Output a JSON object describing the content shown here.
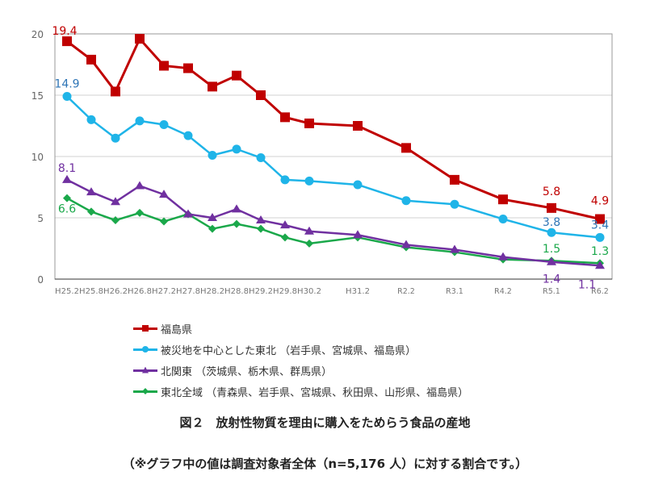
{
  "chart_data": {
    "type": "line",
    "categories": [
      "H25.2",
      "H25.8",
      "H26.2",
      "H26.8",
      "H27.2",
      "H27.8",
      "H28.2",
      "H28.8",
      "H29.2",
      "H29.8",
      "H30.2",
      "H31.2",
      "R2.2",
      "R3.1",
      "R4.2",
      "R5.1",
      "R6.2"
    ],
    "ylim": [
      0,
      20
    ],
    "yticks": [
      "0",
      "5",
      "10",
      "15",
      "20"
    ],
    "grid": true,
    "legend_position": "bottom",
    "series": [
      {
        "name": "福島県",
        "color": "#c00000",
        "label_color": "#c00000",
        "marker": "square",
        "values": [
          19.4,
          17.9,
          15.3,
          19.6,
          17.4,
          17.2,
          15.7,
          16.6,
          15.0,
          13.2,
          12.7,
          12.5,
          10.7,
          8.1,
          6.5,
          5.8,
          4.9
        ]
      },
      {
        "name": "被災地を中心とした東北 （岩手県、宮城県、福島県）",
        "color": "#1fb4e8",
        "label_color": "#2e75b6",
        "marker": "circle",
        "values": [
          14.9,
          13.0,
          11.5,
          12.9,
          12.6,
          11.7,
          10.1,
          10.6,
          9.9,
          8.1,
          8.0,
          7.7,
          6.4,
          6.1,
          4.9,
          3.8,
          3.4
        ]
      },
      {
        "name": "北関東 （茨城県、栃木県、群馬県）",
        "color": "#7030a0",
        "label_color": "#7030a0",
        "marker": "triangle",
        "values": [
          8.1,
          7.1,
          6.3,
          7.6,
          6.9,
          5.3,
          5.0,
          5.7,
          4.8,
          4.4,
          3.9,
          3.6,
          2.8,
          2.4,
          1.8,
          1.4,
          1.1
        ]
      },
      {
        "name": "東北全域 （青森県、岩手県、宮城県、秋田県、山形県、福島県）",
        "color": "#1aa84a",
        "label_color": "#1aa84a",
        "marker": "diamond",
        "values": [
          6.6,
          5.5,
          4.8,
          5.4,
          4.7,
          5.3,
          4.1,
          4.5,
          4.1,
          3.4,
          2.9,
          3.4,
          2.6,
          2.2,
          1.6,
          1.5,
          1.3
        ]
      }
    ],
    "data_labels": [
      {
        "series": 0,
        "point": 0,
        "text": "19.4"
      },
      {
        "series": 0,
        "point": 15,
        "text": "5.8"
      },
      {
        "series": 0,
        "point": 16,
        "text": "4.9"
      },
      {
        "series": 1,
        "point": 0,
        "text": "14.9"
      },
      {
        "series": 1,
        "point": 15,
        "text": "3.8"
      },
      {
        "series": 1,
        "point": 16,
        "text": "3.4"
      },
      {
        "series": 2,
        "point": 0,
        "text": "8.1"
      },
      {
        "series": 2,
        "point": 15,
        "text": "1.4"
      },
      {
        "series": 2,
        "point": 16,
        "text": "1.1"
      },
      {
        "series": 3,
        "point": 0,
        "text": "6.6"
      },
      {
        "series": 3,
        "point": 15,
        "text": "1.5"
      },
      {
        "series": 3,
        "point": 16,
        "text": "1.3"
      }
    ]
  },
  "caption": {
    "title": "図２　放射性物質を理由に購入をためらう食品の産地",
    "note": "（※グラフ中の値は調査対象者全体（n=5,176 人）に対する割合です。）"
  }
}
